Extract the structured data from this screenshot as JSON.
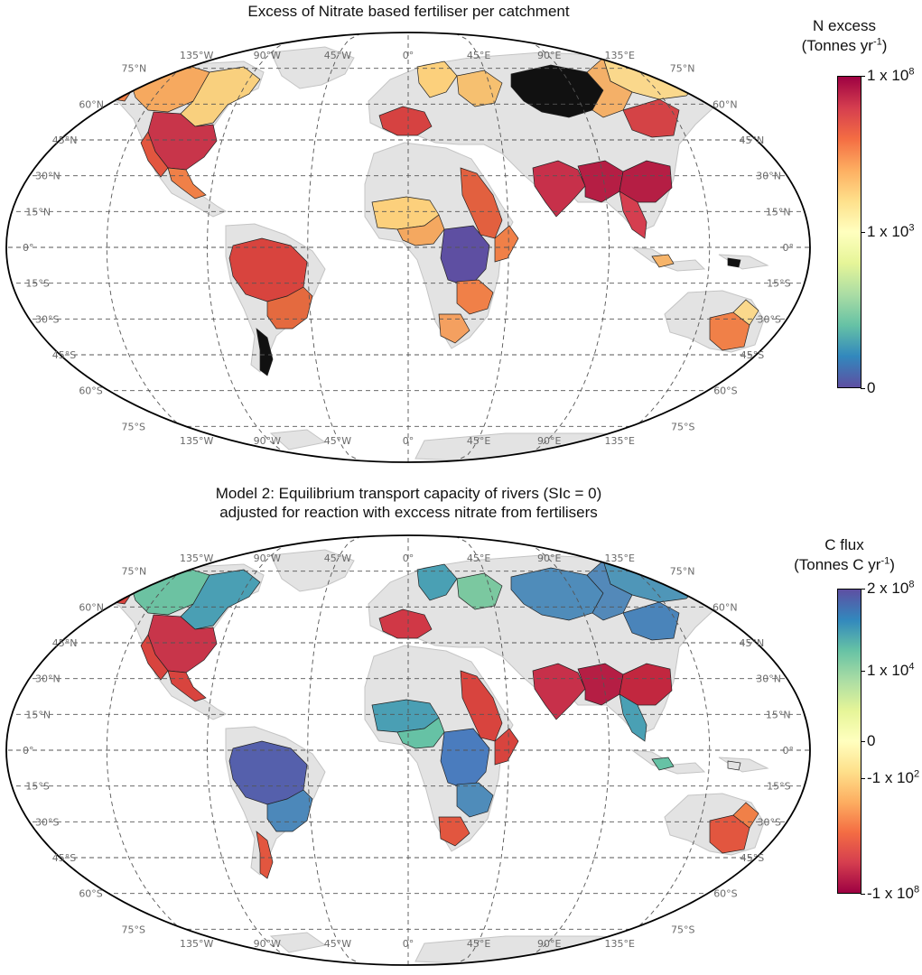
{
  "map1": {
    "title": "Excess of Nitrate based fertiliser per catchment",
    "colorbar": {
      "title_line1": "N excess",
      "unit_prefix": "(Tonnes yr",
      "unit_sup": "-1",
      "unit_suffix": ")",
      "ticks": [
        {
          "base": "1 x 10",
          "exp": "8",
          "level": 1.0
        },
        {
          "base": "1 x 10",
          "exp": "3",
          "level": 0.5
        },
        {
          "base": "0",
          "exp": "",
          "level": 0.0
        }
      ],
      "colors": [
        "#5e4fa2",
        "#3288bd",
        "#66c2a5",
        "#abdda4",
        "#e6f598",
        "#ffffbf",
        "#fee08b",
        "#fdae61",
        "#f46d43",
        "#d53e4f",
        "#9e0142"
      ]
    }
  },
  "map2": {
    "title_line1": "Model 2: Equilibrium transport capacity of rivers (SIc = 0)",
    "title_line2": "adjusted for reaction with exccess nitrate from fertilisers",
    "colorbar": {
      "title_line1": "C flux",
      "unit_prefix": "(Tonnes C yr",
      "unit_sup": "-1",
      "unit_suffix": ")",
      "ticks": [
        {
          "base": "2 x 10",
          "exp": "8",
          "level": 1.0
        },
        {
          "base": "1 x 10",
          "exp": "4",
          "level": 0.73
        },
        {
          "base": "0",
          "exp": "",
          "level": 0.5
        },
        {
          "base": "-1 x 10",
          "exp": "2",
          "level": 0.38
        },
        {
          "base": "-1 x 10",
          "exp": "8",
          "level": 0.0
        }
      ],
      "colors": [
        "#9e0142",
        "#d53e4f",
        "#f46d43",
        "#fdae61",
        "#fee08b",
        "#ffffbf",
        "#e6f598",
        "#abdda4",
        "#66c2a5",
        "#3288bd",
        "#5e4fa2"
      ]
    }
  },
  "grid": {
    "lon_labels": [
      "135°W",
      "90°W",
      "45°W",
      "0°",
      "45°E",
      "90°E",
      "135°E"
    ],
    "lat_labels_left": [
      "75°N",
      "60°N",
      "45°N",
      "30°N",
      "15°N",
      "0°",
      "15°S",
      "30°S",
      "45°S",
      "60°S",
      "75°S"
    ],
    "lat_labels_right": [
      "75°N",
      "60°N",
      "45°N",
      "30°N",
      "15°N",
      "0°",
      "15°S",
      "30°S",
      "45°S",
      "60°S",
      "75°S"
    ]
  },
  "style": {
    "land": "#e3e3e3",
    "coast": "#c4c4c4",
    "grid_line": "#555555",
    "label_gray": "#6a6a6a"
  },
  "regions": {
    "map1": [
      {
        "id": "alaska",
        "color": "#f08048"
      },
      {
        "id": "canada-west",
        "color": "#f6a95f"
      },
      {
        "id": "canada-east",
        "color": "#f9d07e"
      },
      {
        "id": "mississippi",
        "color": "#c8354a"
      },
      {
        "id": "us-west",
        "color": "#e2563f"
      },
      {
        "id": "mexico",
        "color": "#f08048"
      },
      {
        "id": "amazon",
        "color": "#d8443e"
      },
      {
        "id": "parana",
        "color": "#e46a3f"
      },
      {
        "id": "patagonia",
        "color": "#111111"
      },
      {
        "id": "europe-w",
        "color": "#d64241"
      },
      {
        "id": "scandinavia",
        "color": "#fcd07c"
      },
      {
        "id": "east-europe",
        "color": "#f6c070"
      },
      {
        "id": "siberia-black",
        "color": "#111111"
      },
      {
        "id": "siberia-east",
        "color": "#fad88c"
      },
      {
        "id": "lena",
        "color": "#f4b068"
      },
      {
        "id": "amur",
        "color": "#d44346"
      },
      {
        "id": "nile",
        "color": "#e2603f"
      },
      {
        "id": "sahel",
        "color": "#fcd07c"
      },
      {
        "id": "niger",
        "color": "#f4a860"
      },
      {
        "id": "congo",
        "color": "#5e4fa2"
      },
      {
        "id": "zambezi",
        "color": "#f08048"
      },
      {
        "id": "orange",
        "color": "#f4a060"
      },
      {
        "id": "horn",
        "color": "#f08048"
      },
      {
        "id": "india",
        "color": "#c7304a"
      },
      {
        "id": "ganges",
        "color": "#b51e44"
      },
      {
        "id": "china",
        "color": "#b51e44"
      },
      {
        "id": "mekong",
        "color": "#d53e4f"
      },
      {
        "id": "indonesia",
        "color": "#f6b46a"
      },
      {
        "id": "newguinea",
        "color": "#111111"
      },
      {
        "id": "aus-se",
        "color": "#f08048"
      },
      {
        "id": "aus-e",
        "color": "#fad88c"
      }
    ],
    "map2": [
      {
        "id": "alaska",
        "color": "#d8443e"
      },
      {
        "id": "canada-west",
        "color": "#6cc2a2"
      },
      {
        "id": "canada-east",
        "color": "#4a9fb4"
      },
      {
        "id": "mississippi",
        "color": "#c8354a"
      },
      {
        "id": "us-west",
        "color": "#d8443e"
      },
      {
        "id": "mexico",
        "color": "#d8443e"
      },
      {
        "id": "amazon",
        "color": "#5560ac"
      },
      {
        "id": "parana",
        "color": "#4c88ba"
      },
      {
        "id": "patagonia",
        "color": "#e2563f"
      },
      {
        "id": "europe-w",
        "color": "#d03846"
      },
      {
        "id": "scandinavia",
        "color": "#4aa0b4"
      },
      {
        "id": "east-europe",
        "color": "#7bc8a0"
      },
      {
        "id": "siberia-black",
        "color": "#4f8cba"
      },
      {
        "id": "siberia-east",
        "color": "#4f96b8"
      },
      {
        "id": "lena",
        "color": "#5389b9"
      },
      {
        "id": "amur",
        "color": "#4a84ba"
      },
      {
        "id": "nile",
        "color": "#d8443e"
      },
      {
        "id": "sahel",
        "color": "#4a9fb4"
      },
      {
        "id": "niger",
        "color": "#66c2a5"
      },
      {
        "id": "congo",
        "color": "#4a7cbe"
      },
      {
        "id": "zambezi",
        "color": "#4f8cba"
      },
      {
        "id": "orange",
        "color": "#e2563f"
      },
      {
        "id": "horn",
        "color": "#d8443e"
      },
      {
        "id": "india",
        "color": "#c7304a"
      },
      {
        "id": "ganges",
        "color": "#b51e44"
      },
      {
        "id": "china",
        "color": "#c2273f"
      },
      {
        "id": "mekong",
        "color": "#4aa0b4"
      },
      {
        "id": "indonesia",
        "color": "#66c2a5"
      },
      {
        "id": "newguinea",
        "color": "#e3e3e3"
      },
      {
        "id": "aus-se",
        "color": "#e2563f"
      },
      {
        "id": "aus-e",
        "color": "#f08048"
      }
    ]
  }
}
